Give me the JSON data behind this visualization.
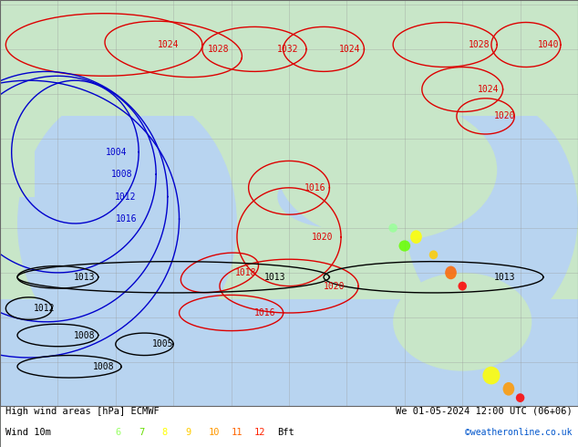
{
  "title_left": "High wind areas [hPa] ECMWF",
  "title_right": "We 01-05-2024 12:00 UTC (06+06)",
  "subtitle_left": "Wind 10m",
  "bft_nums": [
    "6",
    "7",
    "8",
    "9",
    "10",
    "11",
    "12"
  ],
  "bft_colors": [
    "#99ff66",
    "#66dd00",
    "#ffff00",
    "#ffcc00",
    "#ff9900",
    "#ff6600",
    "#ff2200"
  ],
  "copyright": "©weatheronline.co.uk",
  "bg_color": "#c8e6c8",
  "land_color": "#c8e6c8",
  "sea_color": "#b8d4f0",
  "isobar_color_red": "#dd0000",
  "isobar_color_blue": "#0000cc",
  "isobar_color_black": "#000000",
  "grid_color": "#999999",
  "fig_width": 6.34,
  "fig_height": 4.9,
  "dpi": 100
}
